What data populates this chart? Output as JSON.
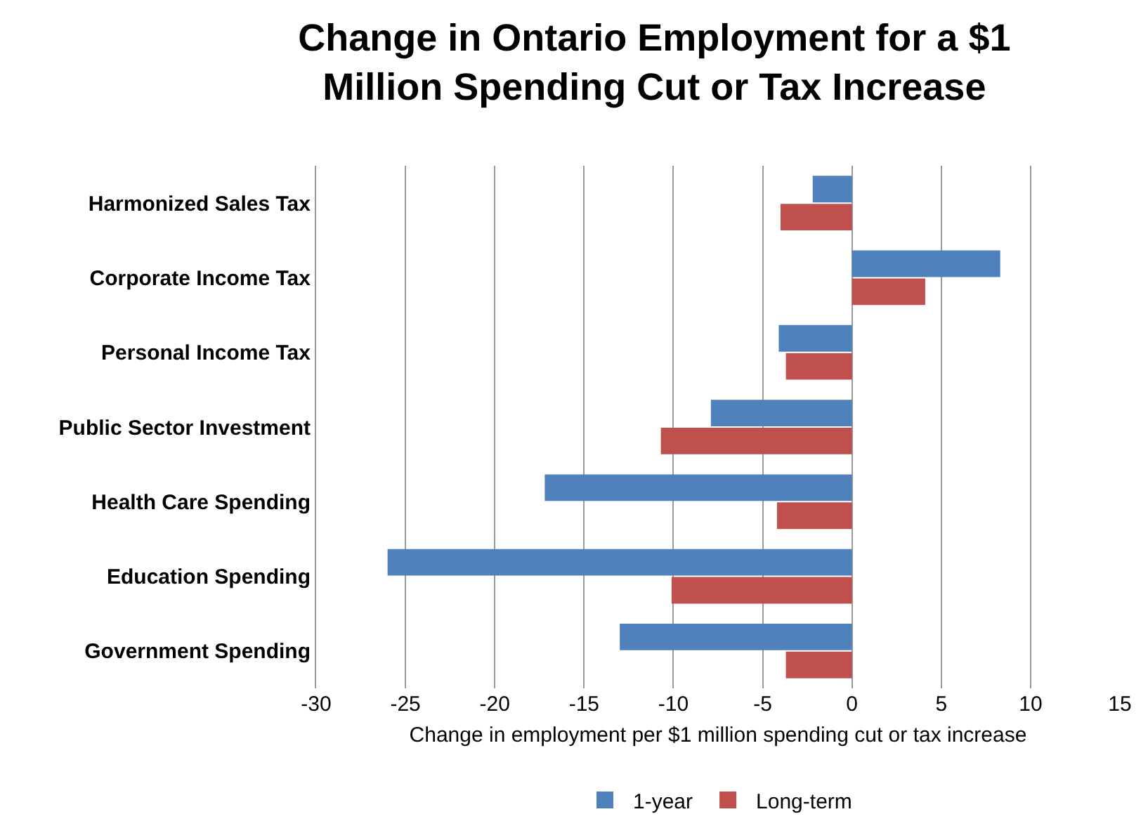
{
  "chart_data": {
    "type": "bar",
    "orientation": "horizontal",
    "title": "Change in Ontario Employment for a $1 Million Spending Cut or Tax Increase",
    "xlabel": "Change in employment per $1 million spending cut or tax increase",
    "categories": [
      "Harmonized Sales Tax",
      "Corporate Income Tax",
      "Personal Income Tax",
      "Public Sector Investment",
      "Health Care Spending",
      "Education Spending",
      "Government Spending"
    ],
    "series": [
      {
        "name": "1-year",
        "color": "#4f81bd",
        "values": [
          -2.2,
          8.3,
          -4.1,
          -7.9,
          -17.2,
          -26.0,
          -13.0
        ]
      },
      {
        "name": "Long-term",
        "color": "#c0504d",
        "values": [
          -4.0,
          4.1,
          -3.7,
          -10.7,
          -4.2,
          -10.1,
          -3.7
        ]
      }
    ],
    "xlim": [
      -30,
      15
    ],
    "xticks": [
      -30,
      -25,
      -20,
      -15,
      -10,
      -5,
      0,
      5,
      10,
      15
    ],
    "grid": "x",
    "legend": "bottom"
  }
}
